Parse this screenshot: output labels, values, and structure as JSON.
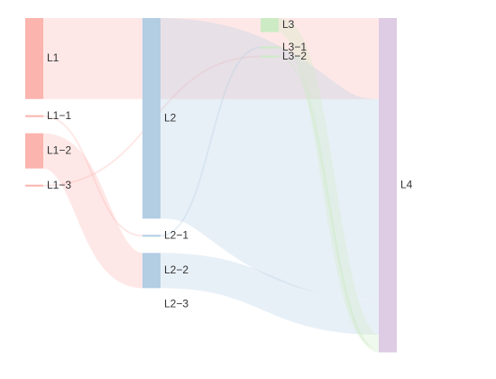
{
  "chart_data": {
    "type": "sankey",
    "nodes": [
      {
        "id": "L1",
        "label": "L1",
        "color": "#fbb4ae",
        "column": 0
      },
      {
        "id": "L1-1",
        "label": "L1−1",
        "color": "#fbb4ae",
        "column": 0
      },
      {
        "id": "L1-2",
        "label": "L1−2",
        "color": "#fbb4ae",
        "column": 0
      },
      {
        "id": "L1-3",
        "label": "L1−3",
        "color": "#fbb4ae",
        "column": 0
      },
      {
        "id": "L2",
        "label": "L2",
        "color": "#b3cde3",
        "column": 1
      },
      {
        "id": "L2-1",
        "label": "L2−1",
        "color": "#b3cde3",
        "column": 1
      },
      {
        "id": "L2-2",
        "label": "L2−2",
        "color": "#b3cde3",
        "column": 1
      },
      {
        "id": "L2-3",
        "label": "L2−3",
        "color": "#b3cde3",
        "column": 1
      },
      {
        "id": "L3",
        "label": "L3",
        "color": "#ccebc5",
        "column": 2
      },
      {
        "id": "L3-1",
        "label": "L3−1",
        "color": "#ccebc5",
        "column": 2
      },
      {
        "id": "L3-2",
        "label": "L3−2",
        "color": "#ccebc5",
        "column": 2
      },
      {
        "id": "L4",
        "label": "L4",
        "color": "#decbe4",
        "column": 3
      }
    ],
    "links": [
      {
        "source": "L1",
        "target": "L4",
        "value": 23
      },
      {
        "source": "L1-1",
        "target": "L2-1",
        "value": 0.5
      },
      {
        "source": "L1-2",
        "target": "L2-2",
        "value": 10
      },
      {
        "source": "L1-3",
        "target": "L3-2",
        "value": 0.5
      },
      {
        "source": "L2",
        "target": "L4",
        "value": 57
      },
      {
        "source": "L2-1",
        "target": "L3-1",
        "value": 0.5
      },
      {
        "source": "L2-2",
        "target": "L4",
        "value": 10
      },
      {
        "source": "L3",
        "target": "L4",
        "value": 4
      },
      {
        "source": "L3-1",
        "target": "L4",
        "value": 0.5
      },
      {
        "source": "L3-2",
        "target": "L4",
        "value": 0.5
      }
    ]
  }
}
